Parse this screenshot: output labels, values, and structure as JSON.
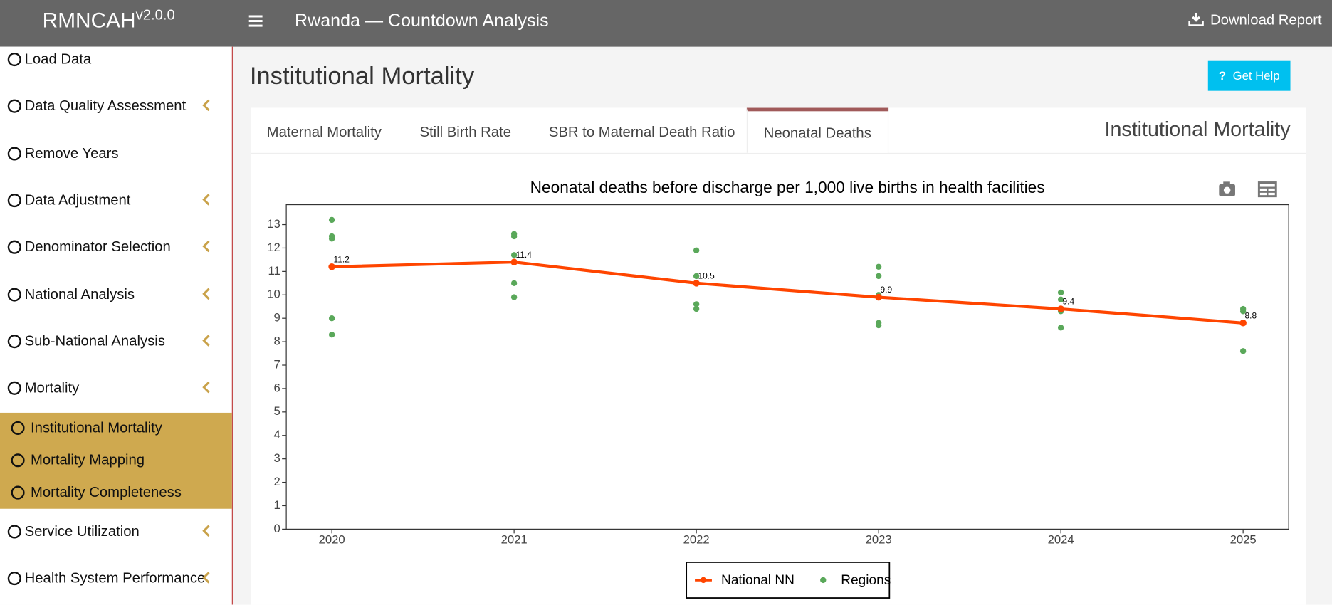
{
  "header": {
    "brand": "RMNCAH",
    "version": "v2.0.0",
    "title": "Rwanda — Countdown Analysis",
    "download": "Download Report"
  },
  "sidebar": {
    "items": [
      {
        "label": "Load Data",
        "expandable": false
      },
      {
        "label": "Data Quality Assessment",
        "expandable": true
      },
      {
        "label": "Remove Years",
        "expandable": false
      },
      {
        "label": "Data Adjustment",
        "expandable": true
      },
      {
        "label": "Denominator Selection",
        "expandable": true
      },
      {
        "label": "National Analysis",
        "expandable": true
      },
      {
        "label": "Sub-National Analysis",
        "expandable": true
      },
      {
        "label": "Mortality",
        "expandable": true
      }
    ],
    "submenu": [
      "Institutional Mortality",
      "Mortality Mapping",
      "Mortality Completeness"
    ],
    "items_after": [
      {
        "label": "Service Utilization",
        "expandable": true
      },
      {
        "label": "Health System Performance",
        "expandable": true
      }
    ]
  },
  "page": {
    "title": "Institutional Mortality",
    "help": "Get Help",
    "box_title": "Institutional Mortality",
    "tabs": [
      "Maternal Mortality",
      "Still Birth Rate",
      "SBR to Maternal Death Ratio",
      "Neonatal Deaths"
    ],
    "active_tab": 3
  },
  "chart_data": {
    "type": "line",
    "title": "Neonatal deaths before discharge per 1,000 live births in health facilities",
    "xlim": [
      2019.75,
      2025.25
    ],
    "xticks": [
      2020,
      2021,
      2022,
      2023,
      2024,
      2025
    ],
    "ylim": [
      0,
      13.85
    ],
    "yticks": [
      0,
      1,
      2,
      3,
      4,
      5,
      6,
      7,
      8,
      9,
      10,
      11,
      12,
      13
    ],
    "legend": "bottom",
    "series": [
      {
        "name": "National NN",
        "type": "line",
        "color": "#ff4500",
        "x": [
          2020,
          2021,
          2022,
          2023,
          2024,
          2025
        ],
        "values": [
          11.2,
          11.4,
          10.5,
          9.9,
          9.4,
          8.8
        ]
      },
      {
        "name": "Regions",
        "type": "scatter",
        "color": "#5aa85a",
        "x": [
          2020,
          2020,
          2020,
          2020,
          2020,
          2021,
          2021,
          2021,
          2021,
          2021,
          2022,
          2022,
          2022,
          2022,
          2023,
          2023,
          2023,
          2023,
          2023,
          2024,
          2024,
          2024,
          2024,
          2025,
          2025,
          2025
        ],
        "values": [
          13.2,
          12.5,
          12.4,
          9.0,
          8.3,
          12.6,
          12.5,
          11.7,
          10.5,
          9.9,
          11.9,
          10.8,
          9.6,
          9.4,
          11.2,
          10.8,
          10.0,
          8.8,
          8.7,
          10.1,
          9.8,
          9.3,
          8.6,
          9.4,
          9.3,
          7.6
        ]
      }
    ]
  }
}
